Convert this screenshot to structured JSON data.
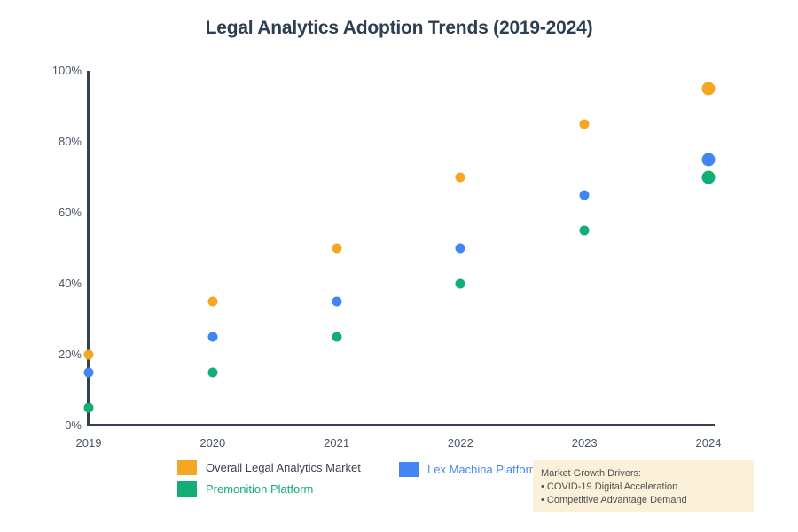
{
  "page": {
    "title": "Legal Analytics Adoption Trends (2019-2024)"
  },
  "chart_data": {
    "type": "scatter",
    "title": "Legal Analytics Adoption Trends (2019-2024)",
    "categories": [
      "2019",
      "2020",
      "2021",
      "2022",
      "2023",
      "2024"
    ],
    "series": [
      {
        "name": "Overall Legal Analytics Market",
        "color": "#F5A623",
        "label_color": "#3A4250",
        "values": [
          20,
          35,
          50,
          70,
          85,
          95
        ]
      },
      {
        "name": "Lex Machina Platform",
        "color": "#4285F4",
        "label_color": "#4A86E8",
        "values": [
          15,
          25,
          35,
          50,
          65,
          75
        ]
      },
      {
        "name": "Premonition Platform",
        "color": "#12AE73",
        "label_color": "#12AE73",
        "values": [
          5,
          15,
          25,
          40,
          55,
          70
        ]
      }
    ],
    "xlabel": "",
    "ylabel": "",
    "ylim": [
      0,
      100
    ],
    "yticks": [
      "0%",
      "20%",
      "40%",
      "60%",
      "80%",
      "100%"
    ],
    "grid": false,
    "legend_position": "bottom",
    "marker_diameters": [
      11,
      11,
      11,
      11,
      11,
      15
    ],
    "axis_color": "#364150",
    "tick_color": "#4A5565",
    "title_color": "#2C3E50"
  },
  "annotation": {
    "title": "Market Growth Drivers:",
    "bullets": [
      "• COVID-19 Digital Acceleration",
      "• Competitive Advantage Demand"
    ],
    "background": "#FBF0D9",
    "text_color": "#4F4F4F"
  }
}
